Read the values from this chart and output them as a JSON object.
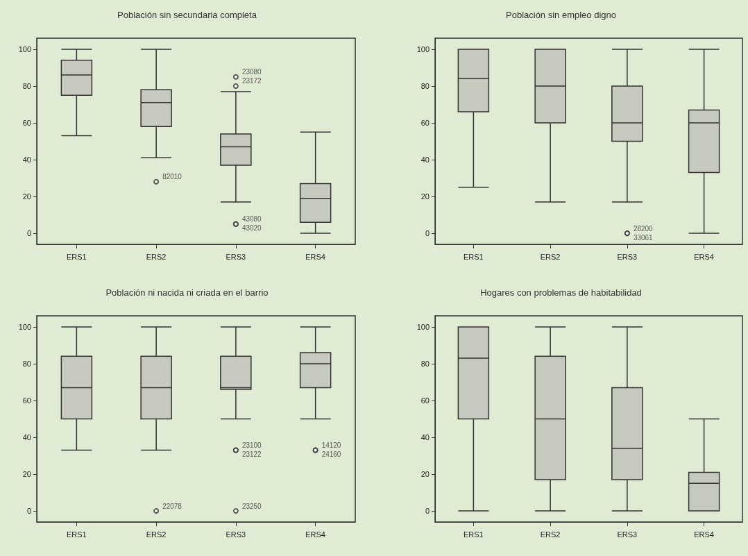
{
  "chart_data": [
    {
      "type": "box",
      "title": "Población sin secundaria completa",
      "categories": [
        "ERS1",
        "ERS2",
        "ERS3",
        "ERS4"
      ],
      "ylim": [
        -6,
        106
      ],
      "yticks": [
        0,
        20,
        40,
        60,
        80,
        100
      ],
      "series": [
        {
          "color": "#c6c9bd",
          "boxes": [
            {
              "low": 53,
              "q1": 75,
              "median": 86,
              "q3": 94,
              "high": 100
            },
            {
              "low": 41,
              "q1": 58,
              "median": 71,
              "q3": 78,
              "high": 100,
              "outliers": [
                28
              ]
            },
            {
              "low": 17,
              "q1": 37,
              "median": 47,
              "q3": 54,
              "high": 77,
              "outliers": [
                85,
                80,
                5,
                5
              ]
            },
            {
              "low": 0,
              "q1": 6,
              "median": 19,
              "q3": 27,
              "high": 55
            }
          ]
        }
      ],
      "annotations": [
        "82010",
        "23080",
        "23172",
        "43080",
        "43020"
      ]
    },
    {
      "type": "box",
      "title": "Población sin empleo digno",
      "categories": [
        "ERS1",
        "ERS2",
        "ERS3",
        "ERS4"
      ],
      "ylim": [
        -6,
        106
      ],
      "yticks": [
        0,
        20,
        40,
        60,
        80,
        100
      ],
      "series": [
        {
          "color": "#c6c9bd",
          "boxes": [
            {
              "low": 25,
              "q1": 66,
              "median": 84,
              "q3": 100,
              "high": 100
            },
            {
              "low": 17,
              "q1": 60,
              "median": 80,
              "q3": 100,
              "high": 100
            },
            {
              "low": 17,
              "q1": 50,
              "median": 60,
              "q3": 80,
              "high": 100,
              "outliers": [
                0,
                0
              ]
            },
            {
              "low": 0,
              "q1": 33,
              "median": 60,
              "q3": 67,
              "high": 100
            }
          ]
        }
      ],
      "annotations": [
        "28200",
        "33061"
      ]
    },
    {
      "type": "box",
      "title": "Población ni nacida ni criada en el barrio",
      "categories": [
        "ERS1",
        "ERS2",
        "ERS3",
        "ERS4"
      ],
      "ylim": [
        -6,
        106
      ],
      "yticks": [
        0,
        20,
        40,
        60,
        80,
        100
      ],
      "series": [
        {
          "color": "#c6c9bd",
          "boxes": [
            {
              "low": 33,
              "q1": 50,
              "median": 67,
              "q3": 84,
              "high": 100
            },
            {
              "low": 33,
              "q1": 50,
              "median": 67,
              "q3": 84,
              "high": 100,
              "outliers": [
                0
              ]
            },
            {
              "low": 50,
              "q1": 66,
              "median": 67,
              "q3": 84,
              "high": 100,
              "outliers": [
                33,
                33,
                0
              ]
            },
            {
              "low": 50,
              "q1": 67,
              "median": 80,
              "q3": 86,
              "high": 100,
              "outliers": [
                33,
                33
              ]
            }
          ]
        }
      ],
      "annotations": [
        "22078",
        "23100",
        "23122",
        "23250",
        "14120",
        "24160"
      ]
    },
    {
      "type": "box",
      "title": "Hogares con problemas de habitabilidad",
      "categories": [
        "ERS1",
        "ERS2",
        "ERS3",
        "ERS4"
      ],
      "ylim": [
        -6,
        106
      ],
      "yticks": [
        0,
        20,
        40,
        60,
        80,
        100
      ],
      "series": [
        {
          "color": "#c6c9bd",
          "boxes": [
            {
              "low": 0,
              "q1": 50,
              "median": 83,
              "q3": 100,
              "high": 100
            },
            {
              "low": 0,
              "q1": 17,
              "median": 50,
              "q3": 84,
              "high": 100
            },
            {
              "low": 0,
              "q1": 17,
              "median": 34,
              "q3": 67,
              "high": 100
            },
            {
              "low": 0,
              "q1": 0,
              "median": 15,
              "q3": 21,
              "high": 50
            }
          ]
        }
      ]
    }
  ]
}
